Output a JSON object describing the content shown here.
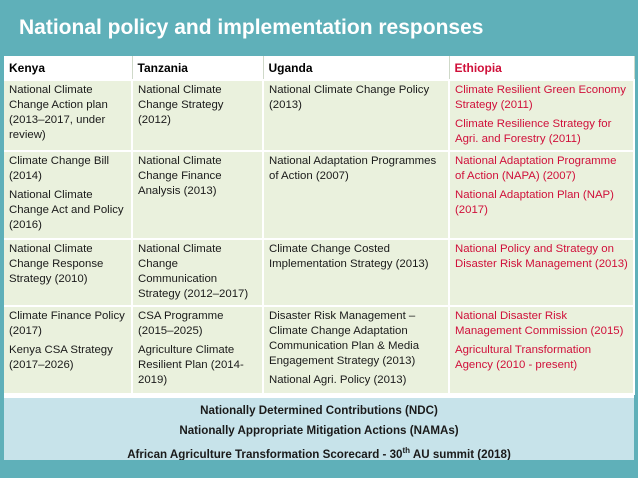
{
  "title": "National policy and implementation responses",
  "columns": [
    "Kenya",
    "Tanzania",
    "Uganda",
    "Ethiopia"
  ],
  "rows": [
    [
      [
        "National Climate Change Action plan (2013–2017, under review)"
      ],
      [
        "National Climate Change Strategy (2012)"
      ],
      [
        "National Climate Change Policy (2013)"
      ],
      [
        "Climate Resilient Green Economy Strategy (2011)",
        "Climate Resilience Strategy for Agri. and Forestry (2011)"
      ]
    ],
    [
      [
        "Climate Change Bill (2014)",
        "National Climate Change Act and Policy (2016)"
      ],
      [
        "National Climate Change Finance Analysis (2013)"
      ],
      [
        "National Adaptation Programmes of Action (2007)"
      ],
      [
        "National Adaptation Programme of Action (NAPA) (2007)",
        "National Adaptation Plan (NAP) (2017)"
      ]
    ],
    [
      [
        "National Climate Change Response Strategy (2010)"
      ],
      [
        "National Climate Change Communication Strategy (2012–2017)"
      ],
      [
        "Climate Change Costed Implementation Strategy (2013)"
      ],
      [
        "National Policy and Strategy on Disaster Risk Management (2013)"
      ]
    ],
    [
      [
        "Climate Finance Policy (2017)",
        "Kenya CSA Strategy (2017–2026)"
      ],
      [
        "CSA Programme (2015–2025)",
        "Agriculture Climate Resilient Plan (2014-2019)"
      ],
      [
        "Disaster Risk Management – Climate Change Adaptation Communication Plan & Media Engagement Strategy (2013)",
        "National Agri. Policy (2013)"
      ],
      [
        "National Disaster Risk Management Commission (2015)",
        "Agricultural Transformation Agency (2010 - present)"
      ]
    ]
  ],
  "footer": {
    "line1": "Nationally Determined Contributions (NDC)",
    "line2": "Nationally Appropriate Mitigation Actions (NAMAs)",
    "line3_pre": "African Agriculture Transformation Scorecard -  30",
    "line3_sup": "th",
    "line3_post": " AU summit (2018)"
  }
}
